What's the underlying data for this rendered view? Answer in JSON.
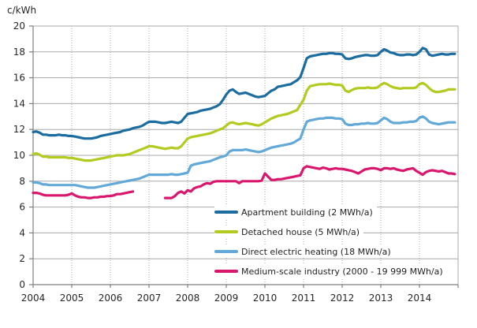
{
  "unit_label": "c/kWh",
  "colors": {
    "grid": "#a8a8a8",
    "axis": "#7f7f7f",
    "text": "#262626"
  },
  "chart_data": {
    "type": "line",
    "title": "c/kWh",
    "xlabel": "",
    "ylabel": "c/kWh",
    "ylim": [
      0,
      20
    ],
    "y_tick_step": 2,
    "y_tick_labels": [
      "0",
      "2",
      "4",
      "6",
      "8",
      "10",
      "12",
      "14",
      "16",
      "18",
      "20"
    ],
    "x_tick_labels": [
      "2004",
      "2005",
      "2006",
      "2007",
      "2008",
      "2009",
      "2010",
      "2011",
      "2012",
      "2013",
      "2014"
    ],
    "x_frequency": "monthly",
    "grid": true,
    "legend_position": "inside-lower-right",
    "series": [
      {
        "label": "Apartment building (2 MWh/a)",
        "color": "#1b6d9f",
        "values": [
          11.8,
          11.85,
          11.75,
          11.6,
          11.6,
          11.55,
          11.55,
          11.55,
          11.6,
          11.55,
          11.55,
          11.5,
          11.5,
          11.45,
          11.4,
          11.35,
          11.3,
          11.3,
          11.3,
          11.35,
          11.4,
          11.5,
          11.55,
          11.6,
          11.65,
          11.7,
          11.75,
          11.8,
          11.9,
          11.95,
          12.0,
          12.1,
          12.15,
          12.2,
          12.3,
          12.45,
          12.6,
          12.6,
          12.6,
          12.55,
          12.5,
          12.5,
          12.55,
          12.6,
          12.55,
          12.5,
          12.6,
          12.9,
          13.2,
          13.25,
          13.3,
          13.35,
          13.45,
          13.5,
          13.55,
          13.6,
          13.7,
          13.8,
          13.95,
          14.3,
          14.7,
          15.0,
          15.1,
          14.9,
          14.75,
          14.8,
          14.85,
          14.75,
          14.65,
          14.55,
          14.5,
          14.55,
          14.6,
          14.8,
          15.0,
          15.1,
          15.3,
          15.35,
          15.4,
          15.45,
          15.5,
          15.65,
          15.8,
          16.05,
          16.75,
          17.5,
          17.65,
          17.7,
          17.75,
          17.8,
          17.85,
          17.85,
          17.9,
          17.9,
          17.85,
          17.85,
          17.8,
          17.5,
          17.45,
          17.5,
          17.6,
          17.65,
          17.7,
          17.75,
          17.75,
          17.7,
          17.7,
          17.75,
          18.0,
          18.2,
          18.1,
          17.95,
          17.9,
          17.8,
          17.75,
          17.75,
          17.8,
          17.8,
          17.75,
          17.8,
          18.0,
          18.3,
          18.2,
          17.8,
          17.7,
          17.75,
          17.8,
          17.85,
          17.8,
          17.8,
          17.85,
          17.85
        ]
      },
      {
        "label": "Detached house (5 MWh/a)",
        "color": "#b3cb21",
        "values": [
          10.1,
          10.15,
          10.05,
          9.9,
          9.9,
          9.85,
          9.85,
          9.85,
          9.85,
          9.85,
          9.85,
          9.8,
          9.8,
          9.75,
          9.7,
          9.65,
          9.6,
          9.6,
          9.6,
          9.65,
          9.7,
          9.75,
          9.8,
          9.85,
          9.9,
          9.95,
          10.0,
          10.0,
          10.0,
          10.05,
          10.1,
          10.2,
          10.3,
          10.4,
          10.5,
          10.6,
          10.7,
          10.7,
          10.65,
          10.6,
          10.55,
          10.5,
          10.55,
          10.6,
          10.55,
          10.55,
          10.7,
          11.0,
          11.3,
          11.4,
          11.45,
          11.5,
          11.55,
          11.6,
          11.65,
          11.7,
          11.8,
          11.9,
          12.0,
          12.1,
          12.3,
          12.5,
          12.55,
          12.45,
          12.4,
          12.45,
          12.5,
          12.45,
          12.4,
          12.35,
          12.3,
          12.4,
          12.55,
          12.7,
          12.85,
          12.95,
          13.05,
          13.1,
          13.15,
          13.2,
          13.3,
          13.4,
          13.5,
          13.9,
          14.3,
          15.0,
          15.35,
          15.4,
          15.45,
          15.5,
          15.5,
          15.5,
          15.55,
          15.5,
          15.45,
          15.45,
          15.4,
          15.0,
          14.9,
          15.05,
          15.15,
          15.2,
          15.2,
          15.2,
          15.25,
          15.2,
          15.2,
          15.25,
          15.45,
          15.6,
          15.5,
          15.35,
          15.25,
          15.2,
          15.15,
          15.2,
          15.2,
          15.2,
          15.2,
          15.25,
          15.5,
          15.6,
          15.45,
          15.2,
          15.0,
          14.9,
          14.9,
          14.95,
          15.0,
          15.1,
          15.1,
          15.1
        ]
      },
      {
        "label": "Direct electric heating (18 MWh/a)",
        "color": "#62a9d8",
        "values": [
          7.9,
          7.9,
          7.85,
          7.75,
          7.75,
          7.7,
          7.7,
          7.7,
          7.7,
          7.7,
          7.7,
          7.7,
          7.7,
          7.7,
          7.65,
          7.6,
          7.55,
          7.5,
          7.5,
          7.5,
          7.55,
          7.6,
          7.65,
          7.7,
          7.75,
          7.8,
          7.85,
          7.9,
          7.95,
          8.0,
          8.05,
          8.1,
          8.15,
          8.2,
          8.3,
          8.4,
          8.5,
          8.5,
          8.5,
          8.5,
          8.5,
          8.5,
          8.5,
          8.55,
          8.5,
          8.5,
          8.55,
          8.6,
          8.65,
          9.2,
          9.3,
          9.35,
          9.4,
          9.45,
          9.5,
          9.55,
          9.65,
          9.75,
          9.85,
          9.9,
          10.0,
          10.3,
          10.4,
          10.4,
          10.4,
          10.4,
          10.45,
          10.4,
          10.35,
          10.3,
          10.25,
          10.3,
          10.4,
          10.5,
          10.6,
          10.65,
          10.7,
          10.75,
          10.8,
          10.85,
          10.9,
          11.0,
          11.15,
          11.3,
          12.0,
          12.6,
          12.7,
          12.75,
          12.8,
          12.85,
          12.85,
          12.9,
          12.9,
          12.9,
          12.85,
          12.85,
          12.8,
          12.45,
          12.35,
          12.35,
          12.4,
          12.4,
          12.45,
          12.45,
          12.5,
          12.45,
          12.45,
          12.5,
          12.7,
          12.9,
          12.8,
          12.6,
          12.5,
          12.5,
          12.5,
          12.55,
          12.55,
          12.6,
          12.6,
          12.65,
          12.9,
          13.0,
          12.85,
          12.6,
          12.5,
          12.45,
          12.4,
          12.45,
          12.5,
          12.55,
          12.55,
          12.55
        ]
      },
      {
        "label": "Medium-scale industry (2000 - 19 999 MWh/a)",
        "color": "#d8176d",
        "values": [
          7.1,
          7.1,
          7.05,
          6.95,
          6.9,
          6.9,
          6.9,
          6.9,
          6.9,
          6.9,
          6.9,
          6.95,
          7.05,
          6.9,
          6.8,
          6.75,
          6.75,
          6.7,
          6.7,
          6.75,
          6.75,
          6.8,
          6.8,
          6.85,
          6.85,
          6.9,
          7.0,
          7.0,
          7.05,
          7.1,
          7.15,
          7.2,
          null,
          null,
          null,
          null,
          null,
          null,
          null,
          null,
          null,
          6.7,
          6.7,
          6.7,
          6.85,
          7.1,
          7.2,
          7.05,
          7.3,
          7.2,
          7.45,
          7.55,
          7.6,
          7.75,
          7.85,
          7.8,
          7.95,
          8.0,
          8.0,
          8.0,
          8.0,
          8.0,
          8.0,
          8.0,
          7.85,
          8.0,
          8.0,
          8.0,
          8.0,
          8.0,
          8.0,
          8.05,
          8.6,
          8.35,
          8.1,
          8.1,
          8.15,
          8.15,
          8.2,
          8.25,
          8.3,
          8.35,
          8.4,
          8.45,
          9.0,
          9.15,
          9.1,
          9.05,
          9.0,
          8.95,
          9.05,
          9.0,
          8.9,
          8.95,
          9.0,
          8.95,
          8.95,
          8.9,
          8.85,
          8.8,
          8.7,
          8.6,
          8.75,
          8.9,
          8.95,
          9.0,
          9.0,
          8.95,
          8.85,
          9.0,
          9.0,
          8.95,
          9.0,
          8.9,
          8.85,
          8.8,
          8.9,
          8.95,
          9.0,
          8.8,
          8.65,
          8.5,
          8.7,
          8.8,
          8.85,
          8.8,
          8.75,
          8.8,
          8.7,
          8.6,
          8.6,
          8.55
        ]
      }
    ]
  }
}
